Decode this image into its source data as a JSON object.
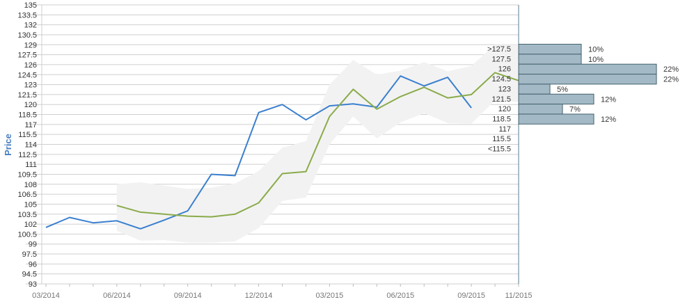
{
  "chart_data": {
    "type": "line",
    "ylabel": "Price",
    "ylim": [
      93,
      135
    ],
    "yticks": [
      "135",
      "133.5",
      "132",
      "130.5",
      "129",
      "127.5",
      "126",
      "124.5",
      "123",
      "121.5",
      "120",
      "118.5",
      "117",
      "115.5",
      "114",
      "112.5",
      "111",
      "109.5",
      "108",
      "106.5",
      "105",
      "103.5",
      "102",
      "100.5",
      "99",
      "97.5",
      "96",
      "94.5",
      "93"
    ],
    "xticks": [
      "03/2014",
      "06/2014",
      "09/2014",
      "12/2014",
      "03/2015",
      "06/2015",
      "09/2015",
      "11/2015"
    ],
    "x_range": [
      "2014-03",
      "2015-11"
    ],
    "series": [
      {
        "color": "#3a7fcf",
        "points": [
          {
            "x": "2014-03",
            "y": 101.5
          },
          {
            "x": "2014-04",
            "y": 103
          },
          {
            "x": "2014-05",
            "y": 102.2
          },
          {
            "x": "2014-06",
            "y": 102.5
          },
          {
            "x": "2014-07",
            "y": 101.3
          },
          {
            "x": "2014-08",
            "y": 102.6
          },
          {
            "x": "2014-09",
            "y": 104
          },
          {
            "x": "2014-10",
            "y": 109.5
          },
          {
            "x": "2014-11",
            "y": 109.3
          },
          {
            "x": "2014-12",
            "y": 118.8
          },
          {
            "x": "2015-01",
            "y": 120
          },
          {
            "x": "2015-02",
            "y": 117.7
          },
          {
            "x": "2015-03",
            "y": 119.8
          },
          {
            "x": "2015-04",
            "y": 120.1
          },
          {
            "x": "2015-05",
            "y": 119.6
          },
          {
            "x": "2015-06",
            "y": 124.3
          },
          {
            "x": "2015-07",
            "y": 122.8
          },
          {
            "x": "2015-08",
            "y": 124.1
          },
          {
            "x": "2015-09",
            "y": 119.5
          }
        ]
      },
      {
        "color": "#8aab4a",
        "points": [
          {
            "x": "2014-06",
            "y": 104.8
          },
          {
            "x": "2014-07",
            "y": 103.8
          },
          {
            "x": "2014-08",
            "y": 103.5
          },
          {
            "x": "2014-09",
            "y": 103.2
          },
          {
            "x": "2014-10",
            "y": 103.1
          },
          {
            "x": "2014-11",
            "y": 103.5
          },
          {
            "x": "2014-12",
            "y": 105.2
          },
          {
            "x": "2015-01",
            "y": 109.6
          },
          {
            "x": "2015-02",
            "y": 109.9
          },
          {
            "x": "2015-03",
            "y": 118.2
          },
          {
            "x": "2015-04",
            "y": 122.3
          },
          {
            "x": "2015-05",
            "y": 119.3
          },
          {
            "x": "2015-06",
            "y": 121.2
          },
          {
            "x": "2015-07",
            "y": 122.6
          },
          {
            "x": "2015-08",
            "y": 121
          },
          {
            "x": "2015-09",
            "y": 121.5
          },
          {
            "x": "2015-10",
            "y": 124.8
          },
          {
            "x": "2015-11",
            "y": 123.6
          }
        ]
      }
    ],
    "band": {
      "color": "#f2f2f2",
      "upper": [
        {
          "x": "2014-06",
          "y": 108
        },
        {
          "x": "2014-07",
          "y": 108.3
        },
        {
          "x": "2014-08",
          "y": 107.8
        },
        {
          "x": "2014-09",
          "y": 107.3
        },
        {
          "x": "2014-10",
          "y": 107.5
        },
        {
          "x": "2014-11",
          "y": 108.1
        },
        {
          "x": "2014-12",
          "y": 110
        },
        {
          "x": "2015-01",
          "y": 113.5
        },
        {
          "x": "2015-02",
          "y": 114.5
        },
        {
          "x": "2015-03",
          "y": 123
        },
        {
          "x": "2015-04",
          "y": 126.7
        },
        {
          "x": "2015-05",
          "y": 124.5
        },
        {
          "x": "2015-06",
          "y": 125.1
        },
        {
          "x": "2015-07",
          "y": 126.4
        },
        {
          "x": "2015-08",
          "y": 125
        },
        {
          "x": "2015-09",
          "y": 125.8
        },
        {
          "x": "2015-10",
          "y": 129
        },
        {
          "x": "2015-11",
          "y": 129
        }
      ],
      "lower": [
        {
          "x": "2014-06",
          "y": 101
        },
        {
          "x": "2014-07",
          "y": 99.5
        },
        {
          "x": "2014-08",
          "y": 99.6
        },
        {
          "x": "2014-09",
          "y": 99.2
        },
        {
          "x": "2014-10",
          "y": 99.2
        },
        {
          "x": "2014-11",
          "y": 99.4
        },
        {
          "x": "2014-12",
          "y": 101.4
        },
        {
          "x": "2015-01",
          "y": 105.5
        },
        {
          "x": "2015-02",
          "y": 106
        },
        {
          "x": "2015-03",
          "y": 114
        },
        {
          "x": "2015-04",
          "y": 118.2
        },
        {
          "x": "2015-05",
          "y": 114.9
        },
        {
          "x": "2015-06",
          "y": 117.3
        },
        {
          "x": "2015-07",
          "y": 118.7
        },
        {
          "x": "2015-08",
          "y": 117.2
        },
        {
          "x": "2015-09",
          "y": 117.1
        },
        {
          "x": "2015-10",
          "y": 120.6
        },
        {
          "x": "2015-11",
          "y": 120.4
        }
      ]
    },
    "distribution": {
      "color": "#a3bac6",
      "border": "#44606e",
      "bins": [
        {
          "label": ">127.5",
          "value": 10,
          "text": "10%"
        },
        {
          "label": "127.5",
          "value": 10,
          "text": "10%"
        },
        {
          "label": "126",
          "value": 22,
          "text": "22%"
        },
        {
          "label": "124.5",
          "value": 22,
          "text": "22%"
        },
        {
          "label": "123",
          "value": 5,
          "text": "5%"
        },
        {
          "label": "121.5",
          "value": 12,
          "text": "12%"
        },
        {
          "label": "120",
          "value": 7,
          "text": "7%"
        },
        {
          "label": "118.5",
          "value": 12,
          "text": "12%"
        },
        {
          "label": "117",
          "value": null,
          "text": ""
        },
        {
          "label": "115.5",
          "value": null,
          "text": ""
        },
        {
          "label": "<115.5",
          "value": null,
          "text": ""
        }
      ]
    }
  }
}
